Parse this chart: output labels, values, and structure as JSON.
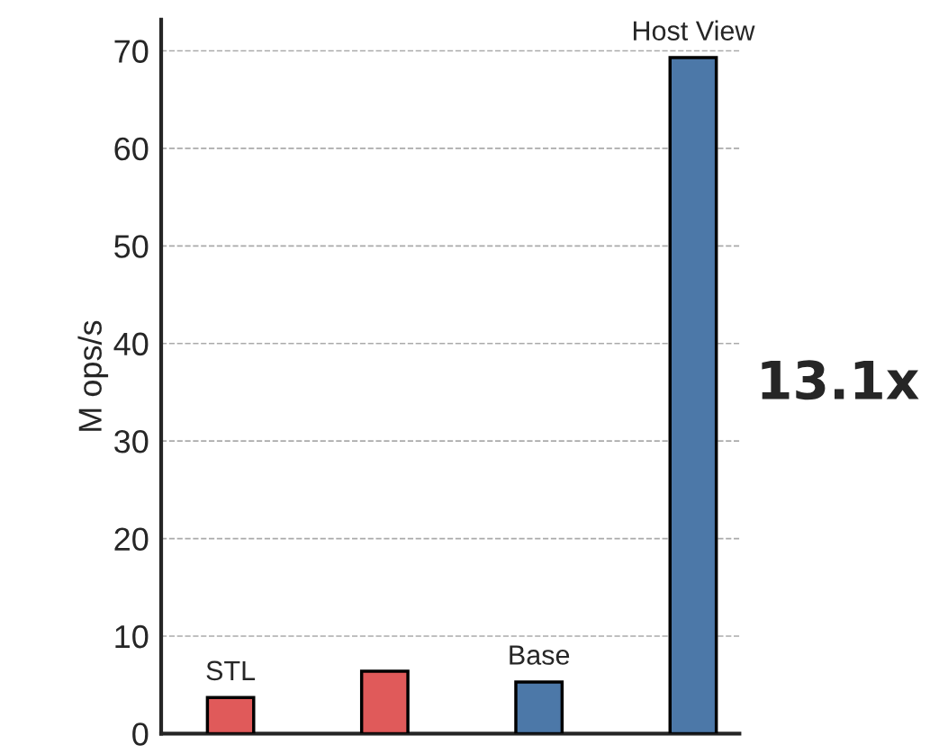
{
  "chart_data": {
    "type": "bar",
    "categories": [
      "STL",
      null,
      "Base",
      "Host View"
    ],
    "values": [
      3.7,
      6.4,
      5.3,
      69.3
    ],
    "colors": [
      "#e05a5a",
      "#e05a5a",
      "#4c78a8",
      "#4c78a8"
    ],
    "ylabel": "M ops/s",
    "ylim": [
      0,
      73.2
    ],
    "yticks": [
      0,
      10,
      20,
      30,
      40,
      50,
      60,
      70
    ],
    "grid": "y",
    "tick_labels": "y",
    "annotations": [
      "13.1x"
    ]
  }
}
